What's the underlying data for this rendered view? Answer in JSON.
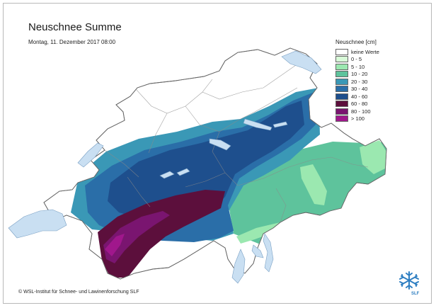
{
  "title": "Neuschnee Summe",
  "date": "Montag, 11. Dezember 2017 08:00",
  "legend": {
    "title": "Neuschnee [cm]",
    "items": [
      {
        "label": "keine Werte",
        "color": "#ffffff"
      },
      {
        "label": "0 - 5",
        "color": "#d8fad8"
      },
      {
        "label": "5 - 10",
        "color": "#9be8b0"
      },
      {
        "label": "10 - 20",
        "color": "#5ec39c"
      },
      {
        "label": "20 - 30",
        "color": "#3a98b6"
      },
      {
        "label": "30 - 40",
        "color": "#2a6ea8"
      },
      {
        "label": "40 - 60",
        "color": "#1e4f8d"
      },
      {
        "label": "60 - 80",
        "color": "#5c0f3c"
      },
      {
        "label": "80 - 100",
        "color": "#7a1570"
      },
      {
        "label": "> 100",
        "color": "#a0178c"
      }
    ]
  },
  "lake_color": "#c9dff2",
  "copyright": "© WSL-Institut für Schnee- und Lawinenforschung SLF",
  "logo": {
    "icon": "snowflake-icon",
    "text": "SLF"
  }
}
